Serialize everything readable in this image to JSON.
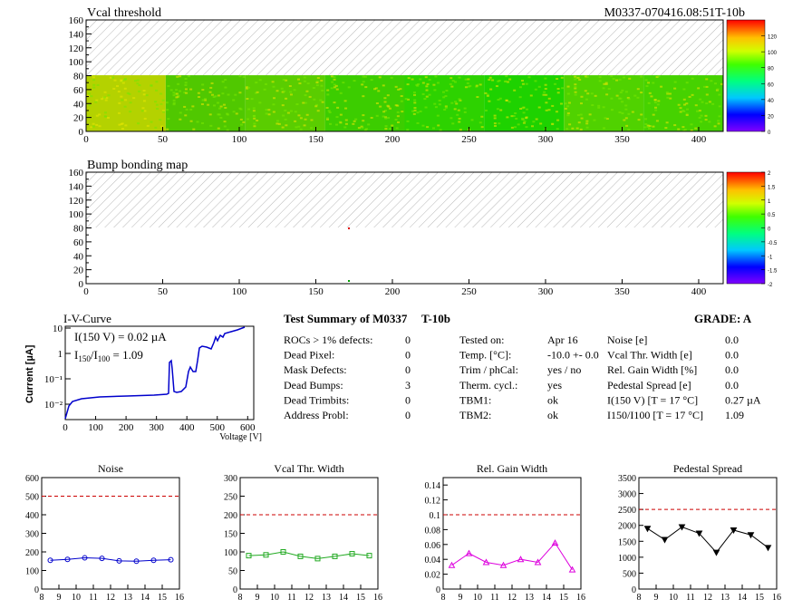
{
  "header": {
    "id": "M0337-070416.08:51T-10b"
  },
  "maps": [
    {
      "title": "Vcal threshold",
      "xticks": [
        0,
        50,
        100,
        150,
        200,
        250,
        300,
        350,
        400
      ],
      "yticks": [
        0,
        20,
        40,
        60,
        80,
        100,
        120,
        140,
        160
      ],
      "xlim": [
        0,
        416
      ],
      "ylim": [
        0,
        160
      ],
      "palette_ticks": [
        0,
        20,
        40,
        60,
        80,
        100,
        120
      ],
      "palette_range": [
        0,
        140
      ]
    },
    {
      "title": "Bump bonding map",
      "xticks": [
        0,
        50,
        100,
        150,
        200,
        250,
        300,
        350,
        400
      ],
      "yticks": [
        0,
        20,
        40,
        60,
        80,
        100,
        120,
        140,
        160
      ],
      "xlim": [
        0,
        416
      ],
      "ylim": [
        0,
        160
      ],
      "palette_ticks": [
        "-2",
        "-1.5",
        "-1",
        "-0.5",
        "0",
        "0.5",
        "1",
        "1.5",
        "2"
      ],
      "palette_range": [
        -2,
        2
      ]
    }
  ],
  "iv": {
    "title": "I-V-Curve",
    "ylabel": "Current [µA]",
    "xlabel": "Voltage [V]",
    "line1": "I(150 V) = 0.02 µA",
    "line2_pre": "I",
    "line2_sub1": "150",
    "line2_mid": "/I",
    "line2_sub2": "100",
    "line2_post": " =  1.09",
    "xticks": [
      0,
      100,
      200,
      300,
      400,
      500,
      600
    ],
    "yticks": [
      "10⁻²",
      "10⁻¹",
      "1",
      "10"
    ]
  },
  "summary": {
    "title": "Test Summary of M0337",
    "tag": "T-10b",
    "grade": "GRADE:  A",
    "left": [
      {
        "label": "ROCs > 1% defects:",
        "value": "0"
      },
      {
        "label": "Dead Pixel:",
        "value": "0"
      },
      {
        "label": "Mask Defects:",
        "value": "0"
      },
      {
        "label": "Dead Bumps:",
        "value": "3"
      },
      {
        "label": "Dead Trimbits:",
        "value": "0"
      },
      {
        "label": "Address Probl:",
        "value": "0"
      }
    ],
    "middle": [
      {
        "label": "Tested on:",
        "value": "Apr 16"
      },
      {
        "label": "Temp. [°C]:",
        "value": "-10.0 +- 0.0"
      },
      {
        "label": "Trim / phCal:",
        "value": "yes / no"
      },
      {
        "label": "Therm. cycl.:",
        "value": "yes"
      },
      {
        "label": "TBM1:",
        "value": "ok"
      },
      {
        "label": "TBM2:",
        "value": "ok"
      }
    ],
    "right": [
      {
        "label": "Noise [e]",
        "value": "0.0"
      },
      {
        "label": "Vcal Thr. Width [e]",
        "value": "0.0"
      },
      {
        "label": "Rel. Gain Width [%]",
        "value": "0.0"
      },
      {
        "label": "Pedestal Spread [e]",
        "value": "0.0"
      },
      {
        "label": "I(150 V) [T = 17 °C]",
        "value": "0.27 µA"
      },
      {
        "label": "I150/I100  [T = 17 °C]",
        "value": "1.09"
      }
    ]
  },
  "chart_data": [
    {
      "type": "line",
      "title": "Noise",
      "color": "#0000cc",
      "marker": "circle",
      "x": [
        8.5,
        9.5,
        10.5,
        11.5,
        12.5,
        13.5,
        14.5,
        15.5
      ],
      "values": [
        155,
        160,
        168,
        165,
        152,
        150,
        155,
        158
      ],
      "xlim": [
        8,
        16
      ],
      "ylim": [
        0,
        600
      ],
      "reference_line": 500,
      "yticks": [
        0,
        100,
        200,
        300,
        400,
        500,
        600
      ],
      "xticks": [
        8,
        9,
        10,
        11,
        12,
        13,
        14,
        15,
        16
      ]
    },
    {
      "type": "line",
      "title": "Vcal Thr. Width",
      "color": "#22aa22",
      "marker": "square",
      "x": [
        8.5,
        9.5,
        10.5,
        11.5,
        12.5,
        13.5,
        14.5,
        15.5
      ],
      "values": [
        90,
        92,
        100,
        88,
        82,
        88,
        95,
        90
      ],
      "xlim": [
        8,
        16
      ],
      "ylim": [
        0,
        300
      ],
      "reference_line": 200,
      "yticks": [
        0,
        50,
        100,
        150,
        200,
        250,
        300
      ],
      "xticks": [
        8,
        9,
        10,
        11,
        12,
        13,
        14,
        15,
        16
      ]
    },
    {
      "type": "line",
      "title": "Rel. Gain Width",
      "color": "#dd00dd",
      "marker": "triangle",
      "x": [
        8.5,
        9.5,
        10.5,
        11.5,
        12.5,
        13.5,
        14.5,
        15.5
      ],
      "values": [
        0.032,
        0.048,
        0.036,
        0.032,
        0.04,
        0.036,
        0.062,
        0.026
      ],
      "xlim": [
        8,
        16
      ],
      "ylim": [
        0,
        0.15
      ],
      "reference_line": 0.1,
      "yticks": [
        0,
        0.02,
        0.04,
        0.06,
        0.08,
        0.1,
        0.12,
        0.14
      ],
      "xticks": [
        8,
        9,
        10,
        11,
        12,
        13,
        14,
        15,
        16
      ]
    },
    {
      "type": "line",
      "title": "Pedestal Spread",
      "color": "#000000",
      "marker": "triangle-down",
      "x": [
        8.5,
        9.5,
        10.5,
        11.5,
        12.5,
        13.5,
        14.5,
        15.5
      ],
      "values": [
        1900,
        1550,
        1950,
        1750,
        1150,
        1850,
        1700,
        1300
      ],
      "xlim": [
        8,
        16
      ],
      "ylim": [
        0,
        3500
      ],
      "reference_line": 2500,
      "yticks": [
        0,
        500,
        1000,
        1500,
        2000,
        2500,
        3000,
        3500
      ],
      "xticks": [
        8,
        9,
        10,
        11,
        12,
        13,
        14,
        15,
        16
      ]
    }
  ]
}
